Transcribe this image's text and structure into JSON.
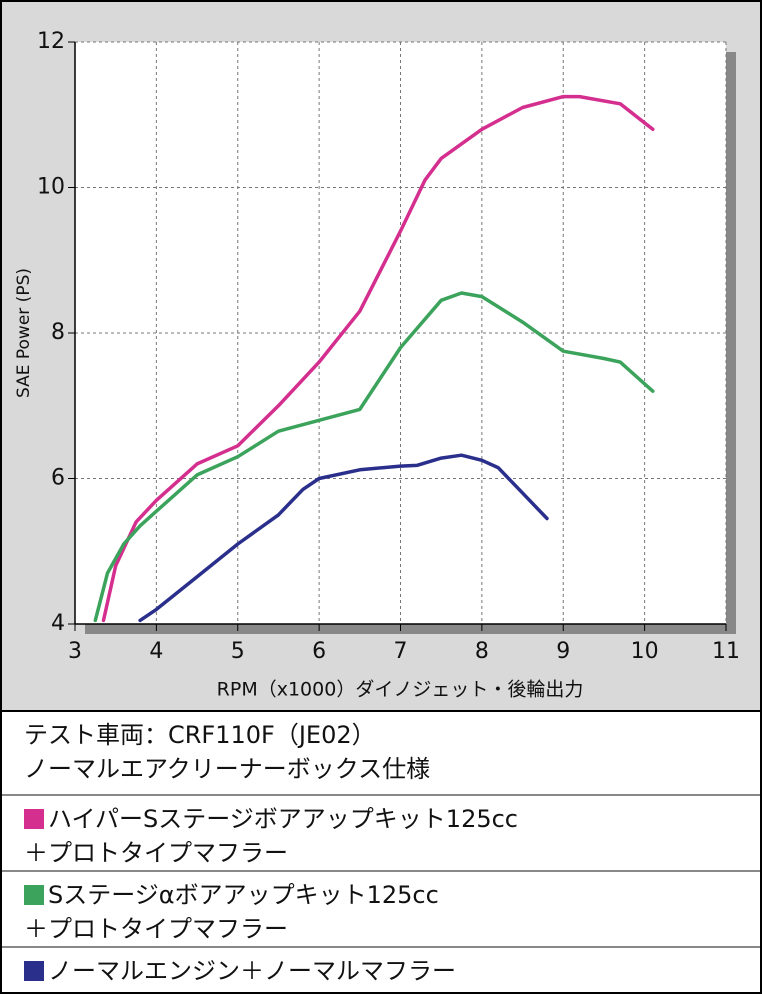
{
  "chart_data": {
    "type": "line",
    "x_label": "RPM（x1000）ダイノジェット・後輪出力",
    "y_label": "SAE Power (PS)",
    "xlim": [
      3,
      11
    ],
    "xticks": [
      3,
      4,
      5,
      6,
      7,
      8,
      9,
      10,
      11
    ],
    "ylim": [
      4,
      12
    ],
    "yticks": [
      4,
      6,
      8,
      10,
      12
    ],
    "grid": true,
    "notes": [
      "テスト車両：CRF110F（JE02）",
      "ノーマルエアクリーナーボックス仕様"
    ],
    "series": [
      {
        "name": "ハイパーSステージボアアップキット125cc\n＋プロトタイプマフラー",
        "color": "#d42f8e",
        "x": [
          3.35,
          3.5,
          3.75,
          4,
          4.5,
          5,
          5.5,
          6,
          6.5,
          7,
          7.3,
          7.5,
          8,
          8.5,
          9,
          9.2,
          9.7,
          10.1
        ],
        "values": [
          4.05,
          4.8,
          5.4,
          5.7,
          6.2,
          6.45,
          7.0,
          7.6,
          8.3,
          9.4,
          10.1,
          10.4,
          10.8,
          11.1,
          11.25,
          11.25,
          11.15,
          10.8
        ]
      },
      {
        "name": "Sステージαボアアップキット125cc\n＋プロトタイプマフラー",
        "color": "#3ba35b",
        "x": [
          3.25,
          3.4,
          3.6,
          3.8,
          4,
          4.5,
          5,
          5.5,
          6,
          6.5,
          7,
          7.5,
          7.75,
          8,
          8.5,
          9,
          9.5,
          9.7,
          10.1
        ],
        "values": [
          4.05,
          4.7,
          5.1,
          5.35,
          5.55,
          6.05,
          6.3,
          6.65,
          6.8,
          6.95,
          7.8,
          8.45,
          8.55,
          8.5,
          8.15,
          7.75,
          7.65,
          7.6,
          7.2
        ]
      },
      {
        "name": "ノーマルエンジン＋ノーマルマフラー",
        "color": "#2b2f8c",
        "x": [
          3.8,
          4,
          4.5,
          5,
          5.5,
          5.8,
          6,
          6.5,
          7,
          7.2,
          7.5,
          7.75,
          8,
          8.2,
          8.5,
          8.8
        ],
        "values": [
          4.05,
          4.2,
          4.65,
          5.1,
          5.5,
          5.85,
          6.0,
          6.12,
          6.17,
          6.18,
          6.28,
          6.32,
          6.25,
          6.15,
          5.8,
          5.45
        ]
      }
    ]
  }
}
